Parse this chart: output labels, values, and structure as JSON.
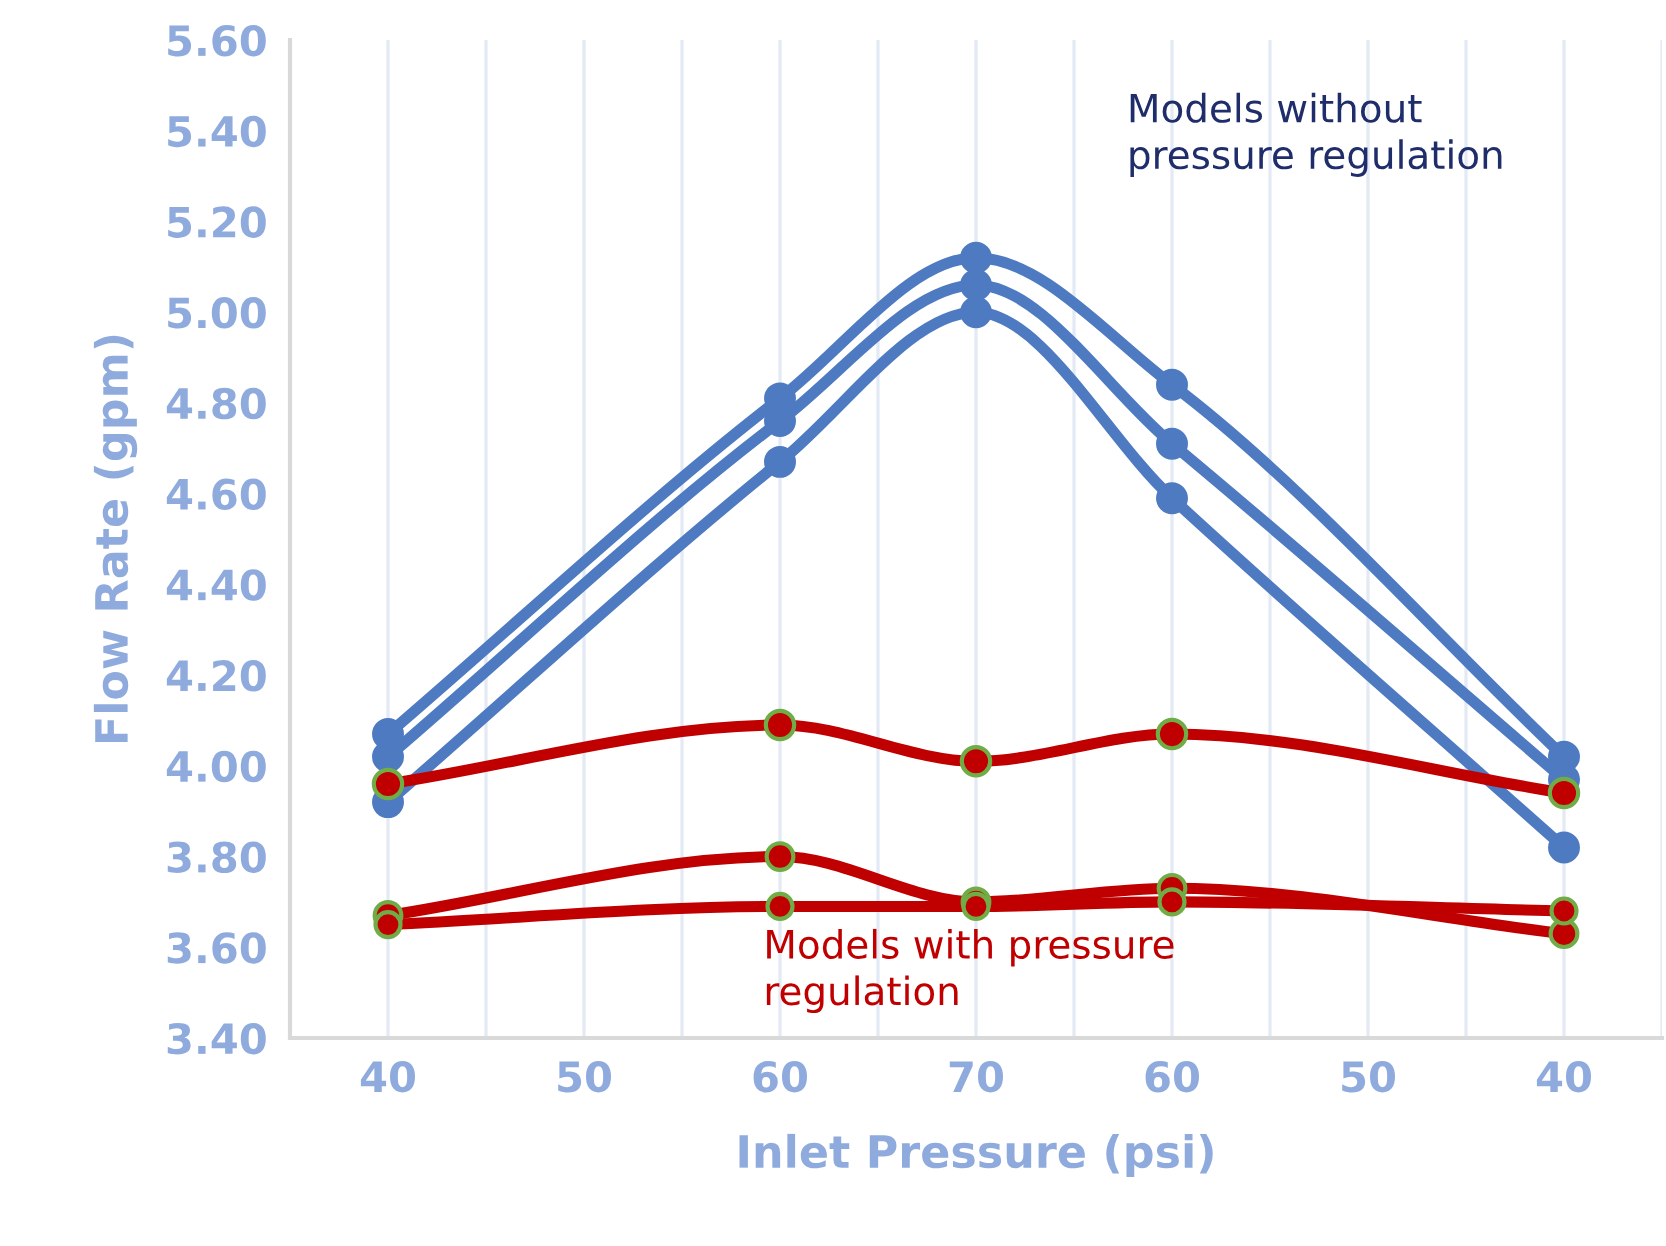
{
  "chart_data": {
    "type": "line",
    "xlabel": "Inlet Pressure (psi)",
    "ylabel": "Flow Rate (gpm)",
    "categories": [
      "40",
      "50",
      "60",
      "70",
      "60",
      "50",
      "40"
    ],
    "ylim": [
      3.4,
      5.6
    ],
    "yticks": [
      {
        "value": 3.4,
        "label": "3.40"
      },
      {
        "value": 3.6,
        "label": "3.60"
      },
      {
        "value": 3.8,
        "label": "3.80"
      },
      {
        "value": 4.0,
        "label": "4.00"
      },
      {
        "value": 4.2,
        "label": "4.20"
      },
      {
        "value": 4.4,
        "label": "4.40"
      },
      {
        "value": 4.6,
        "label": "4.60"
      },
      {
        "value": 4.8,
        "label": "4.80"
      },
      {
        "value": 5.0,
        "label": "5.00"
      },
      {
        "value": 5.2,
        "label": "5.20"
      },
      {
        "value": 5.4,
        "label": "5.40"
      },
      {
        "value": 5.6,
        "label": "5.60"
      }
    ],
    "grid": "x",
    "marker": "circle",
    "line_style": "solid",
    "series": [
      {
        "color": "#4e7ac1",
        "values": [
          4.07,
          null,
          4.81,
          5.12,
          4.84,
          null,
          4.02
        ]
      },
      {
        "color": "#4e7ac1",
        "values": [
          4.02,
          null,
          4.76,
          5.06,
          4.71,
          null,
          3.97
        ]
      },
      {
        "color": "#4e7ac1",
        "values": [
          3.92,
          null,
          4.67,
          5.0,
          4.59,
          null,
          3.82
        ]
      },
      {
        "color": "#c00000",
        "values": [
          3.96,
          null,
          4.09,
          4.01,
          4.07,
          null,
          3.94
        ]
      },
      {
        "color": "#c00000",
        "values": [
          3.67,
          null,
          3.8,
          3.7,
          3.73,
          null,
          3.63
        ]
      },
      {
        "color": "#c00000",
        "values": [
          3.65,
          null,
          3.69,
          3.69,
          3.7,
          null,
          3.68
        ]
      }
    ],
    "annotations": [
      "Models without pressure regulation",
      "Models with pressure regulation"
    ]
  }
}
